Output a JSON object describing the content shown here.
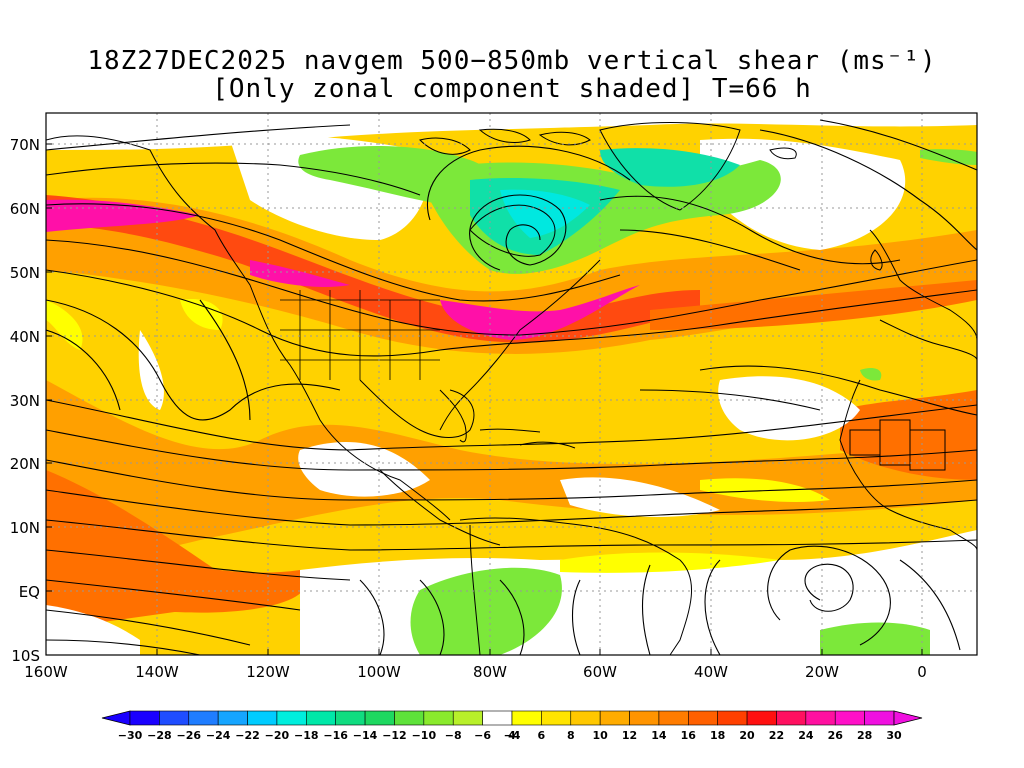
{
  "title": {
    "line1": "18Z27DEC2025 navgem 500−850mb vertical shear (ms⁻¹)",
    "line2": "[Only zonal component shaded] T=66 h"
  },
  "lat_labels": [
    "70N",
    "60N",
    "50N",
    "40N",
    "30N",
    "20N",
    "10N",
    "EQ",
    "10S"
  ],
  "lon_labels": [
    "160W",
    "140W",
    "120W",
    "100W",
    "80W",
    "60W",
    "40W",
    "20W",
    "0"
  ],
  "colorbar": {
    "labels": [
      "−30",
      "−28",
      "−26",
      "−24",
      "−22",
      "−20",
      "−18",
      "−16",
      "−14",
      "−12",
      "−10",
      "−8",
      "−6",
      "−4",
      "4",
      "6",
      "8",
      "10",
      "12",
      "14",
      "16",
      "18",
      "20",
      "22",
      "24",
      "26",
      "28",
      "30"
    ],
    "colors": [
      "#1a00ff",
      "#1f4dff",
      "#1f7dff",
      "#16a5ff",
      "#00ccff",
      "#00eedd",
      "#00e8a8",
      "#10dc80",
      "#1ed860",
      "#5ee23a",
      "#8aea2c",
      "#b8f02a",
      "#ffffff",
      "#ffff00",
      "#ffe400",
      "#ffc800",
      "#ffac00",
      "#ff9400",
      "#ff7c00",
      "#ff6000",
      "#ff4000",
      "#ff1010",
      "#ff1060",
      "#ff10a0",
      "#ff10c8",
      "#f010e0"
    ]
  },
  "shading_colors": {
    "yellow": "#ffff00",
    "gold": "#ffd200",
    "orange": "#ffa000",
    "dark_orange": "#ff7000",
    "red_orange": "#ff4a10",
    "magenta": "#ff10a8",
    "green": "#7ce83a",
    "cyan_green": "#10e0a8",
    "cyan": "#00e8e0"
  }
}
